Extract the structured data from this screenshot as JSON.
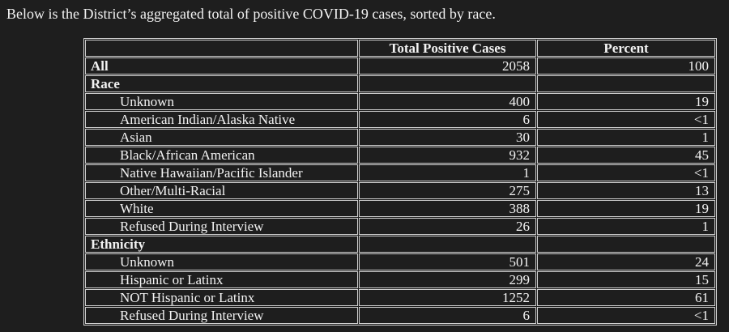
{
  "intro": "Below is the District’s aggregated total of positive COVID-19 cases, sorted by race.",
  "colors": {
    "background": "#1e1e1e",
    "text": "#f3f3f3",
    "table_border": "#cfcfcf"
  },
  "table": {
    "columns": [
      "",
      "Total Positive Cases",
      "Percent"
    ],
    "rows": [
      {
        "label": "All",
        "cases": "2058",
        "percent": "100"
      },
      {
        "label": "Race",
        "cases": "",
        "percent": ""
      },
      {
        "label": "Unknown",
        "cases": "400",
        "percent": "19"
      },
      {
        "label": "American Indian/Alaska Native",
        "cases": "6",
        "percent": "<1"
      },
      {
        "label": "Asian",
        "cases": "30",
        "percent": "1"
      },
      {
        "label": "Black/African American",
        "cases": "932",
        "percent": "45"
      },
      {
        "label": "Native Hawaiian/Pacific Islander",
        "cases": "1",
        "percent": "<1"
      },
      {
        "label": "Other/Multi-Racial",
        "cases": "275",
        "percent": "13"
      },
      {
        "label": "White",
        "cases": "388",
        "percent": "19"
      },
      {
        "label": "Refused During Interview",
        "cases": "26",
        "percent": "1"
      },
      {
        "label": "Ethnicity",
        "cases": "",
        "percent": ""
      },
      {
        "label": "Unknown",
        "cases": "501",
        "percent": "24"
      },
      {
        "label": "Hispanic or Latinx",
        "cases": "299",
        "percent": "15"
      },
      {
        "label": "NOT Hispanic or Latinx",
        "cases": "1252",
        "percent": "61"
      },
      {
        "label": "Refused During Interview",
        "cases": "6",
        "percent": "<1"
      }
    ]
  }
}
